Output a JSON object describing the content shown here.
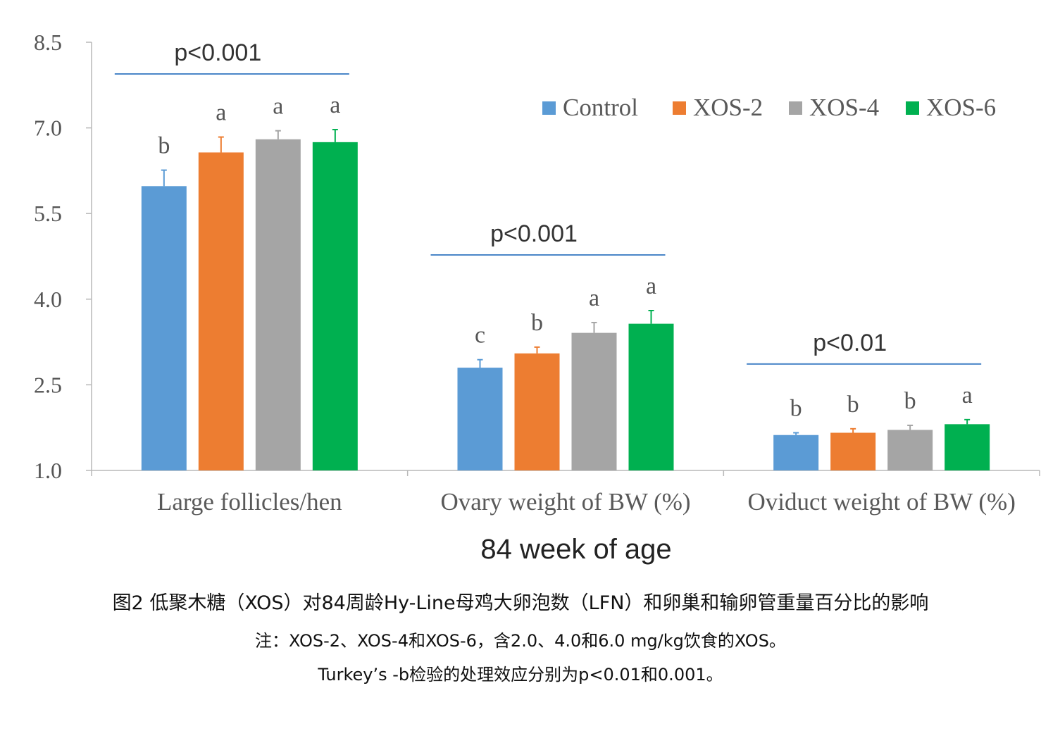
{
  "chart_data": {
    "type": "bar",
    "categories": [
      "Large follicles/hen",
      "Ovary weight of BW (%)",
      "Oviduct weight of BW (%)"
    ],
    "series": [
      {
        "name": "Control",
        "color": "#5b9bd5",
        "values": [
          5.98,
          2.8,
          1.62
        ],
        "errors": [
          0.28,
          0.14,
          0.04
        ],
        "letters": [
          "b",
          "c",
          "b"
        ]
      },
      {
        "name": "XOS-2",
        "color": "#ed7d31",
        "values": [
          6.57,
          3.05,
          1.66
        ],
        "errors": [
          0.27,
          0.11,
          0.07
        ],
        "letters": [
          "a",
          "b",
          "b"
        ]
      },
      {
        "name": "XOS-4",
        "color": "#a5a5a5",
        "values": [
          6.8,
          3.41,
          1.71
        ],
        "errors": [
          0.15,
          0.18,
          0.08
        ],
        "letters": [
          "a",
          "a",
          "b"
        ]
      },
      {
        "name": "XOS-6",
        "color": "#00b050",
        "values": [
          6.75,
          3.57,
          1.81
        ],
        "errors": [
          0.22,
          0.23,
          0.08
        ],
        "letters": [
          "a",
          "a",
          "a"
        ]
      }
    ],
    "significance": [
      "p<0.001",
      "p<0.001",
      "p<0.01"
    ],
    "significance_color": "#4a86c8",
    "xlabel": "84 week of age",
    "ylabel": "",
    "yticks": [
      "8.5",
      "7.0",
      "5.5",
      "4.0",
      "2.5",
      "1.0"
    ],
    "ylim": [
      1.0,
      8.5
    ],
    "grid": false,
    "legend_position": "top-right"
  },
  "caption": {
    "line1": "图2 低聚木糖（XOS）对84周龄Hy-Line母鸡大卵泡数（LFN）和卵巢和输卵管重量百分比的影响",
    "line2": "注：XOS-2、XOS-4和XOS-6，含2.0、4.0和6.0 mg/kg饮食的XOS。",
    "line3": "Turkey’s -b检验的处理效应分别为p<0.01和0.001。"
  }
}
